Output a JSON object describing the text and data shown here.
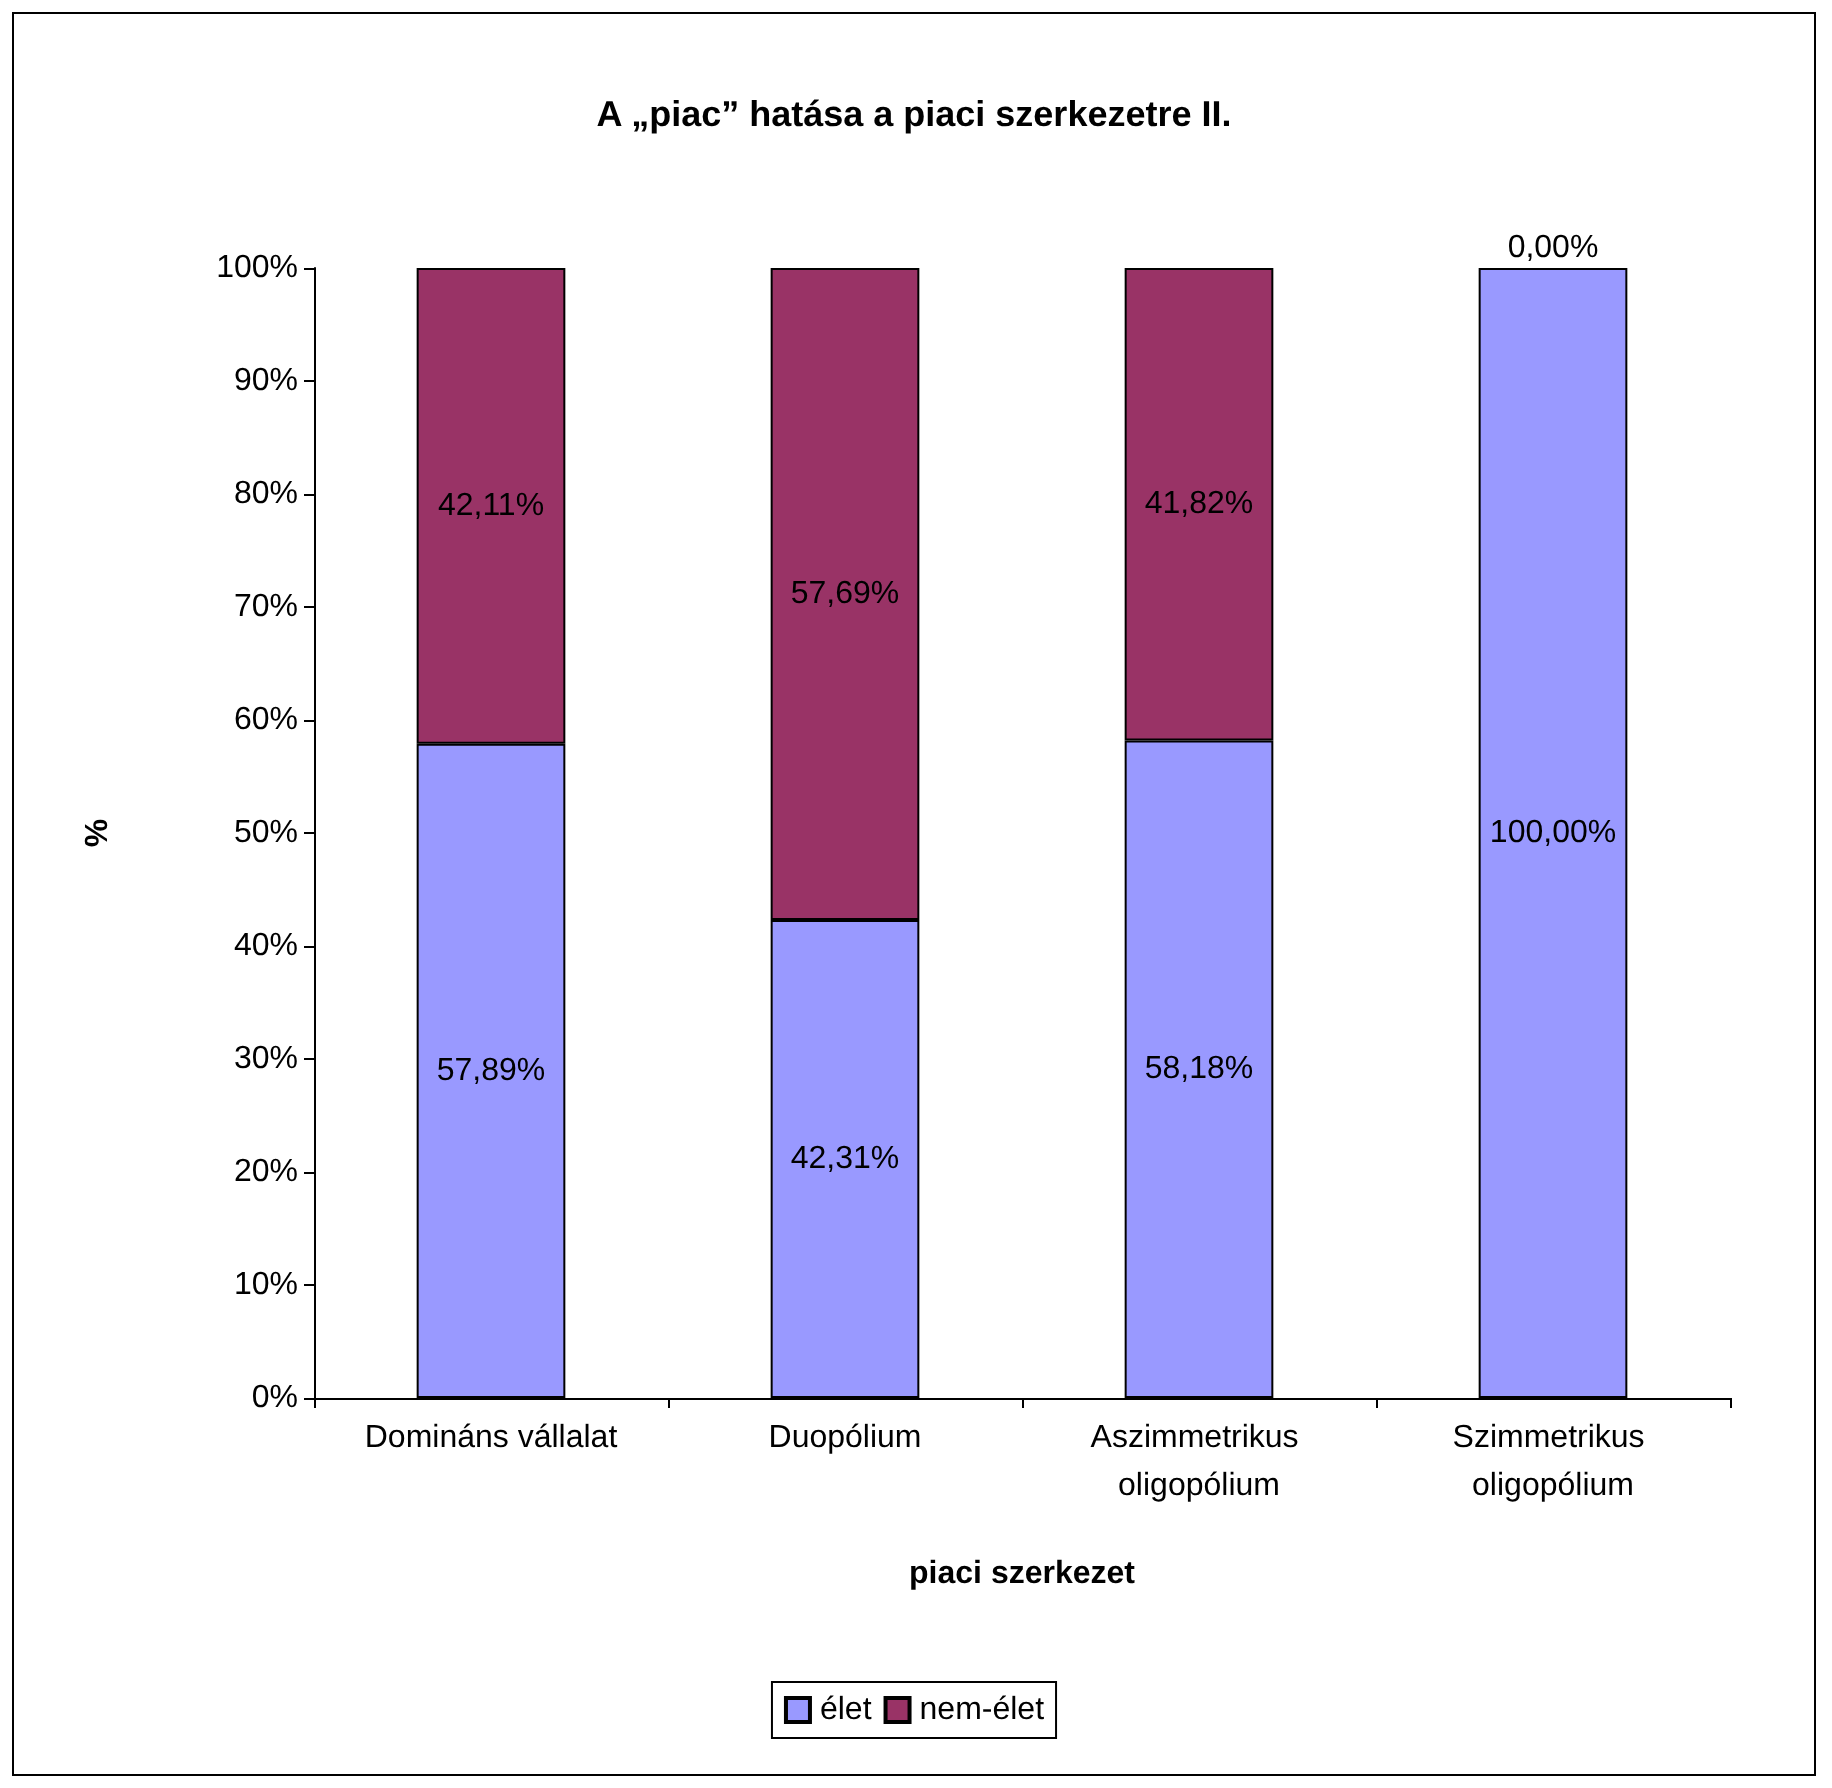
{
  "chart_data": {
    "type": "bar",
    "stacked": true,
    "title": "A „piac” hatása a piaci szerkezetre II.",
    "xlabel": "piaci szerkezet",
    "ylabel": "%",
    "categories": [
      "Domináns vállalat",
      "Duopólium",
      "Aszimmetrikus oligopólium",
      "Szimmetrikus oligopólium"
    ],
    "series": [
      {
        "name": "élet",
        "color": "#9999ff",
        "values": [
          57.89,
          42.31,
          58.18,
          100
        ],
        "value_labels": [
          "57,89%",
          "42,31%",
          "58,18%",
          "100,00%"
        ]
      },
      {
        "name": "nem-élet",
        "color": "#993366",
        "values": [
          42.11,
          57.69,
          41.82,
          0
        ],
        "value_labels": [
          "42,11%",
          "57,69%",
          "41,82%",
          "0,00%"
        ]
      }
    ],
    "ylim": [
      0,
      100
    ],
    "yticks": [
      {
        "value": 0,
        "label": "0%"
      },
      {
        "value": 10,
        "label": "10%"
      },
      {
        "value": 20,
        "label": "20%"
      },
      {
        "value": 30,
        "label": "30%"
      },
      {
        "value": 40,
        "label": "40%"
      },
      {
        "value": 50,
        "label": "50%"
      },
      {
        "value": 60,
        "label": "60%"
      },
      {
        "value": 70,
        "label": "70%"
      },
      {
        "value": 80,
        "label": "80%"
      },
      {
        "value": 90,
        "label": "90%"
      },
      {
        "value": 100,
        "label": "100%"
      }
    ],
    "grid": false,
    "legend": "bottom"
  }
}
